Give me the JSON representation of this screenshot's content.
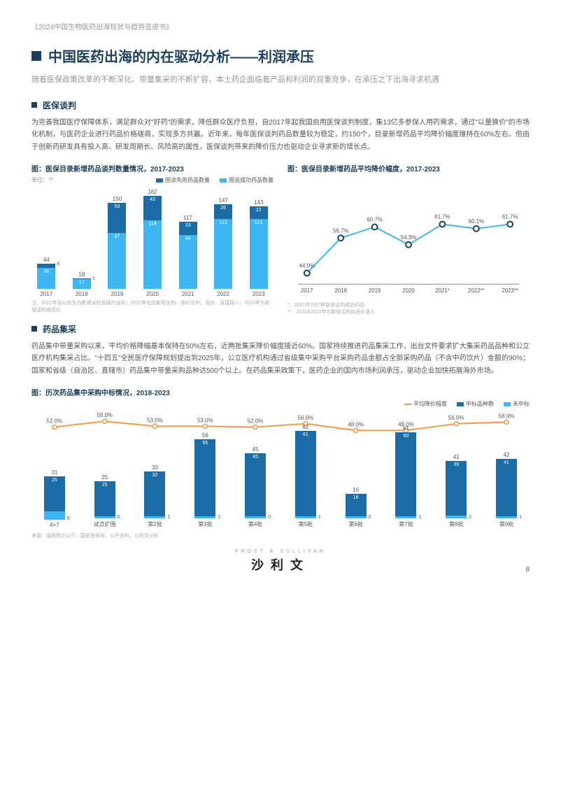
{
  "doc_header": "《2024中国生物医药出海现状与趋势蓝皮书》",
  "page_title": "中国医药出海的内在驱动分析——利润承压",
  "subtitle": "随着医保政策改革的不断深化、带量集采的不断扩容，本土药企面临着产品和利润的双重竞争，在承压之下出海寻求机遇",
  "sec1": {
    "title": "医保谈判",
    "body": "为完善我国医疗保障体系，满足群众对\"好药\"的需求，降低群众医疗负担，自2017年起我国启用医保谈判制度，集13亿多参保人用药需求，通过\"以量换价\"的市场化机制，与医药企业进行药品价格磋商，实现多方共赢。近年来，每年医保谈判药品数量较为稳定，约150个，目录新增药品平均降价幅度维持在60%左右。但由于创新药研发具有投入高、研发周期长、风险高的属性，医保谈判带来的降价压力也驱动企业寻求新的增长点。"
  },
  "chart1": {
    "title": "图：医保目录新增药品谈判数量情况，2017-2023",
    "unit": "单位：个",
    "legend": {
      "fail": "国谈失败药品数量",
      "succ": "国谈成功药品数量"
    },
    "colors": {
      "fail": "#1c6ca8",
      "succ": "#3db6f2"
    },
    "years": [
      "2017",
      "2018",
      "2019",
      "2020",
      "2021",
      "2022",
      "2023"
    ],
    "fail": [
      8,
      1,
      53,
      43,
      23,
      26,
      22
    ],
    "succ": [
      36,
      17,
      97,
      119,
      94,
      121,
      121
    ],
    "totals": [
      44,
      18,
      150,
      162,
      117,
      147,
      143
    ],
    "y_max": 170,
    "note": "注：2021年及以前仅为新增谈判或续约谈判；2022年包括新增谈判、续约谈判、竞价、直接接入；2023年为新增谈判或竞价"
  },
  "chart2": {
    "title": "图：医保目录新增药品平均降价幅度，2017-2023",
    "years": [
      "2017",
      "2018",
      "2019",
      "2020",
      "2021*",
      "2022**",
      "2023**"
    ],
    "values": [
      44.0,
      56.7,
      60.7,
      54.3,
      61.7,
      60.1,
      61.7
    ],
    "ylim": [
      40,
      70
    ],
    "line_color": "#3db6f2",
    "marker_stroke": "#1c3f5f",
    "note": "*：2021年为67种新增谈判成功药品\n**：2022&2023年为新增谈判和竞价准入"
  },
  "sec2": {
    "title": "药品集采",
    "body": "药品集中带量采购以来，平均价格降幅基本保持在50%左右，近两批集采降价幅度接近60%。国家持续推进药品集采工作，出台文件要求扩大集采药品品种和公立医疗机构集采占比。\"十四五\"全民医疗保障规划提出到2025年，公立医疗机构通过省级集中采购平台采购药品金额占全部采购药品（不含中药饮片）金额的90%；国家和省级（自治区、直辖市）药品集中带量采购品种达500个以上。在药品集采政策下，医药企业的国内市场利润承压，驱动企业加快拓展海外市场。"
  },
  "chart3": {
    "title": "图：历次药品集中采购中标情况，2018-2023",
    "legend": {
      "line": "平均降价幅度",
      "win": "中标品种数",
      "lose": "未中标"
    },
    "colors": {
      "line": "#f2994a",
      "win": "#1c6ca8",
      "lose": "#3db6f2"
    },
    "cats": [
      "4+7",
      "试点扩围",
      "第2批",
      "第3批",
      "第4批",
      "第5批",
      "第6批",
      "第7批",
      "第8批",
      "第9批"
    ],
    "win": [
      25,
      25,
      32,
      55,
      45,
      61,
      16,
      60,
      39,
      41
    ],
    "lose": [
      6,
      0,
      1,
      1,
      0,
      1,
      0,
      1,
      2,
      1
    ],
    "totals": [
      31,
      25,
      33,
      56,
      45,
      62,
      16,
      61,
      41,
      42
    ],
    "pct": [
      52.0,
      59.0,
      53.0,
      53.0,
      52.0,
      56.0,
      48.0,
      48.0,
      56.0,
      58.0
    ],
    "y_max": 70,
    "pct_lim": [
      40,
      65
    ]
  },
  "source": "来源：国务院办公厅，国家医保局，公开资料，沙利文分析",
  "footer": {
    "en": "FROST & SULLIVAN",
    "cn": "沙利文",
    "page": "8"
  }
}
